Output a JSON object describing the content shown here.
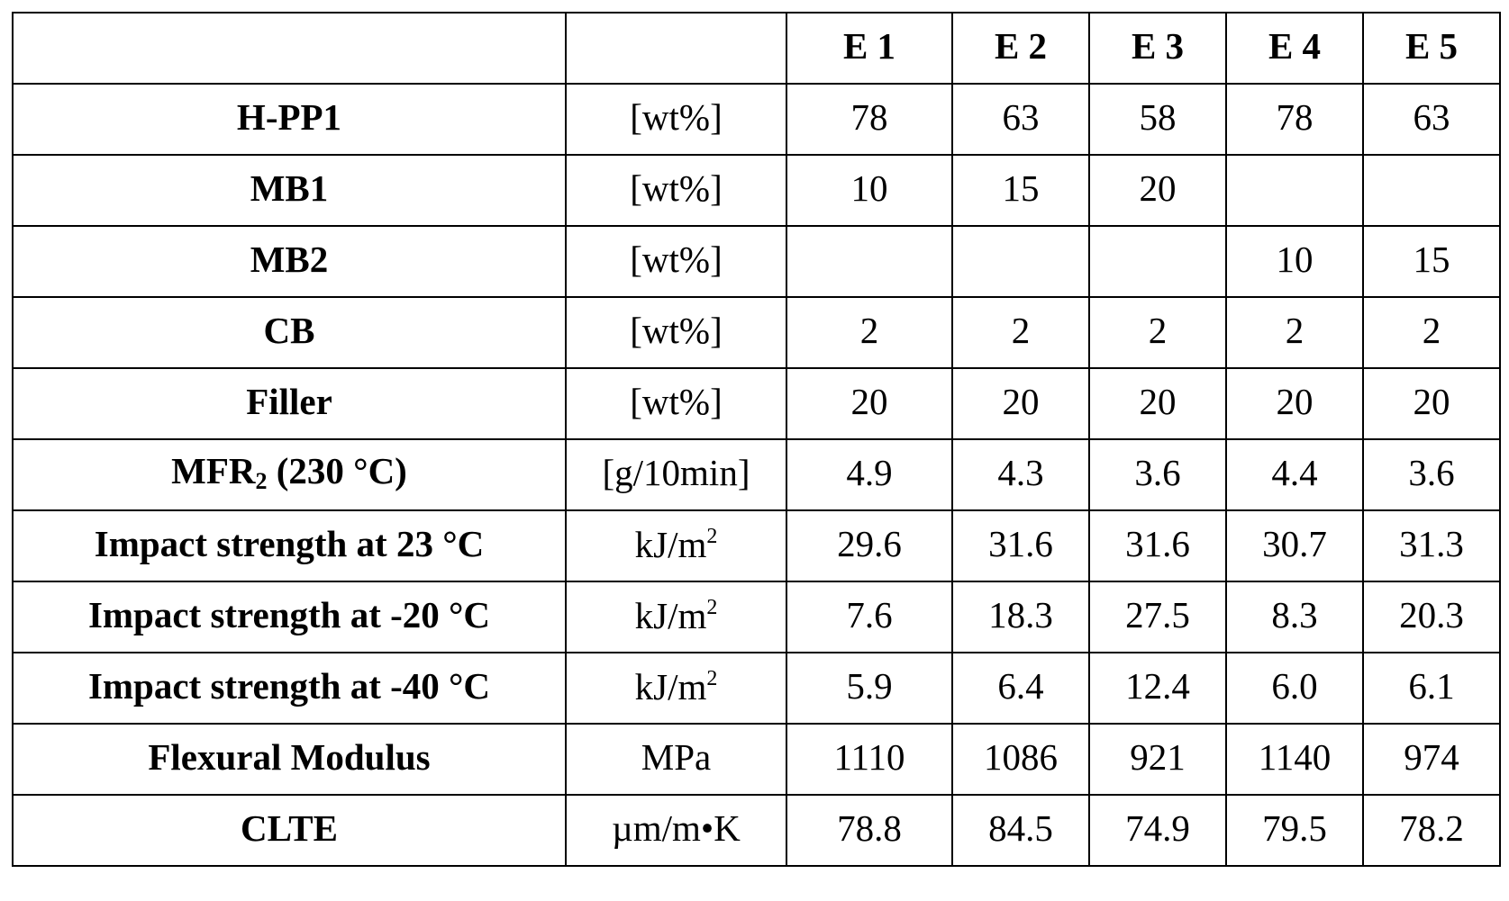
{
  "table": {
    "header": [
      "",
      "",
      "E 1",
      "E 2",
      "E 3",
      "E 4",
      "E 5"
    ],
    "rows": [
      {
        "label": "H-PP1",
        "unit": "[wt%]",
        "values": [
          "78",
          "63",
          "58",
          "78",
          "63"
        ]
      },
      {
        "label": "MB1",
        "unit": "[wt%]",
        "values": [
          "10",
          "15",
          "20",
          "",
          ""
        ]
      },
      {
        "label": "MB2",
        "unit": "[wt%]",
        "values": [
          "",
          "",
          "",
          "10",
          "15"
        ]
      },
      {
        "label": "CB",
        "unit": "[wt%]",
        "values": [
          "2",
          "2",
          "2",
          "2",
          "2"
        ]
      },
      {
        "label": "Filler",
        "unit": "[wt%]",
        "values": [
          "20",
          "20",
          "20",
          "20",
          "20"
        ]
      },
      {
        "label_main": "MFR",
        "label_sub": "2",
        "label_rest": " (230 °C)",
        "unit": "[g/10min]",
        "values": [
          "4.9",
          "4.3",
          "3.6",
          "4.4",
          "3.6"
        ]
      },
      {
        "label": "Impact strength at 23 °C",
        "unit_main": "kJ/m",
        "unit_sup": "2",
        "values": [
          "29.6",
          "31.6",
          "31.6",
          "30.7",
          "31.3"
        ]
      },
      {
        "label": "Impact strength at -20 °C",
        "unit_main": "kJ/m",
        "unit_sup": "2",
        "values": [
          "7.6",
          "18.3",
          "27.5",
          "8.3",
          "20.3"
        ]
      },
      {
        "label": "Impact strength at -40 °C",
        "unit_main": "kJ/m",
        "unit_sup": "2",
        "values": [
          "5.9",
          "6.4",
          "12.4",
          "6.0",
          "6.1"
        ]
      },
      {
        "label": "Flexural Modulus",
        "unit": "MPa",
        "values": [
          "1110",
          "1086",
          "921",
          "1140",
          "974"
        ]
      },
      {
        "label": "CLTE",
        "unit": "µm/m•K",
        "values": [
          "78.8",
          "84.5",
          "74.9",
          "79.5",
          "78.2"
        ]
      }
    ]
  }
}
